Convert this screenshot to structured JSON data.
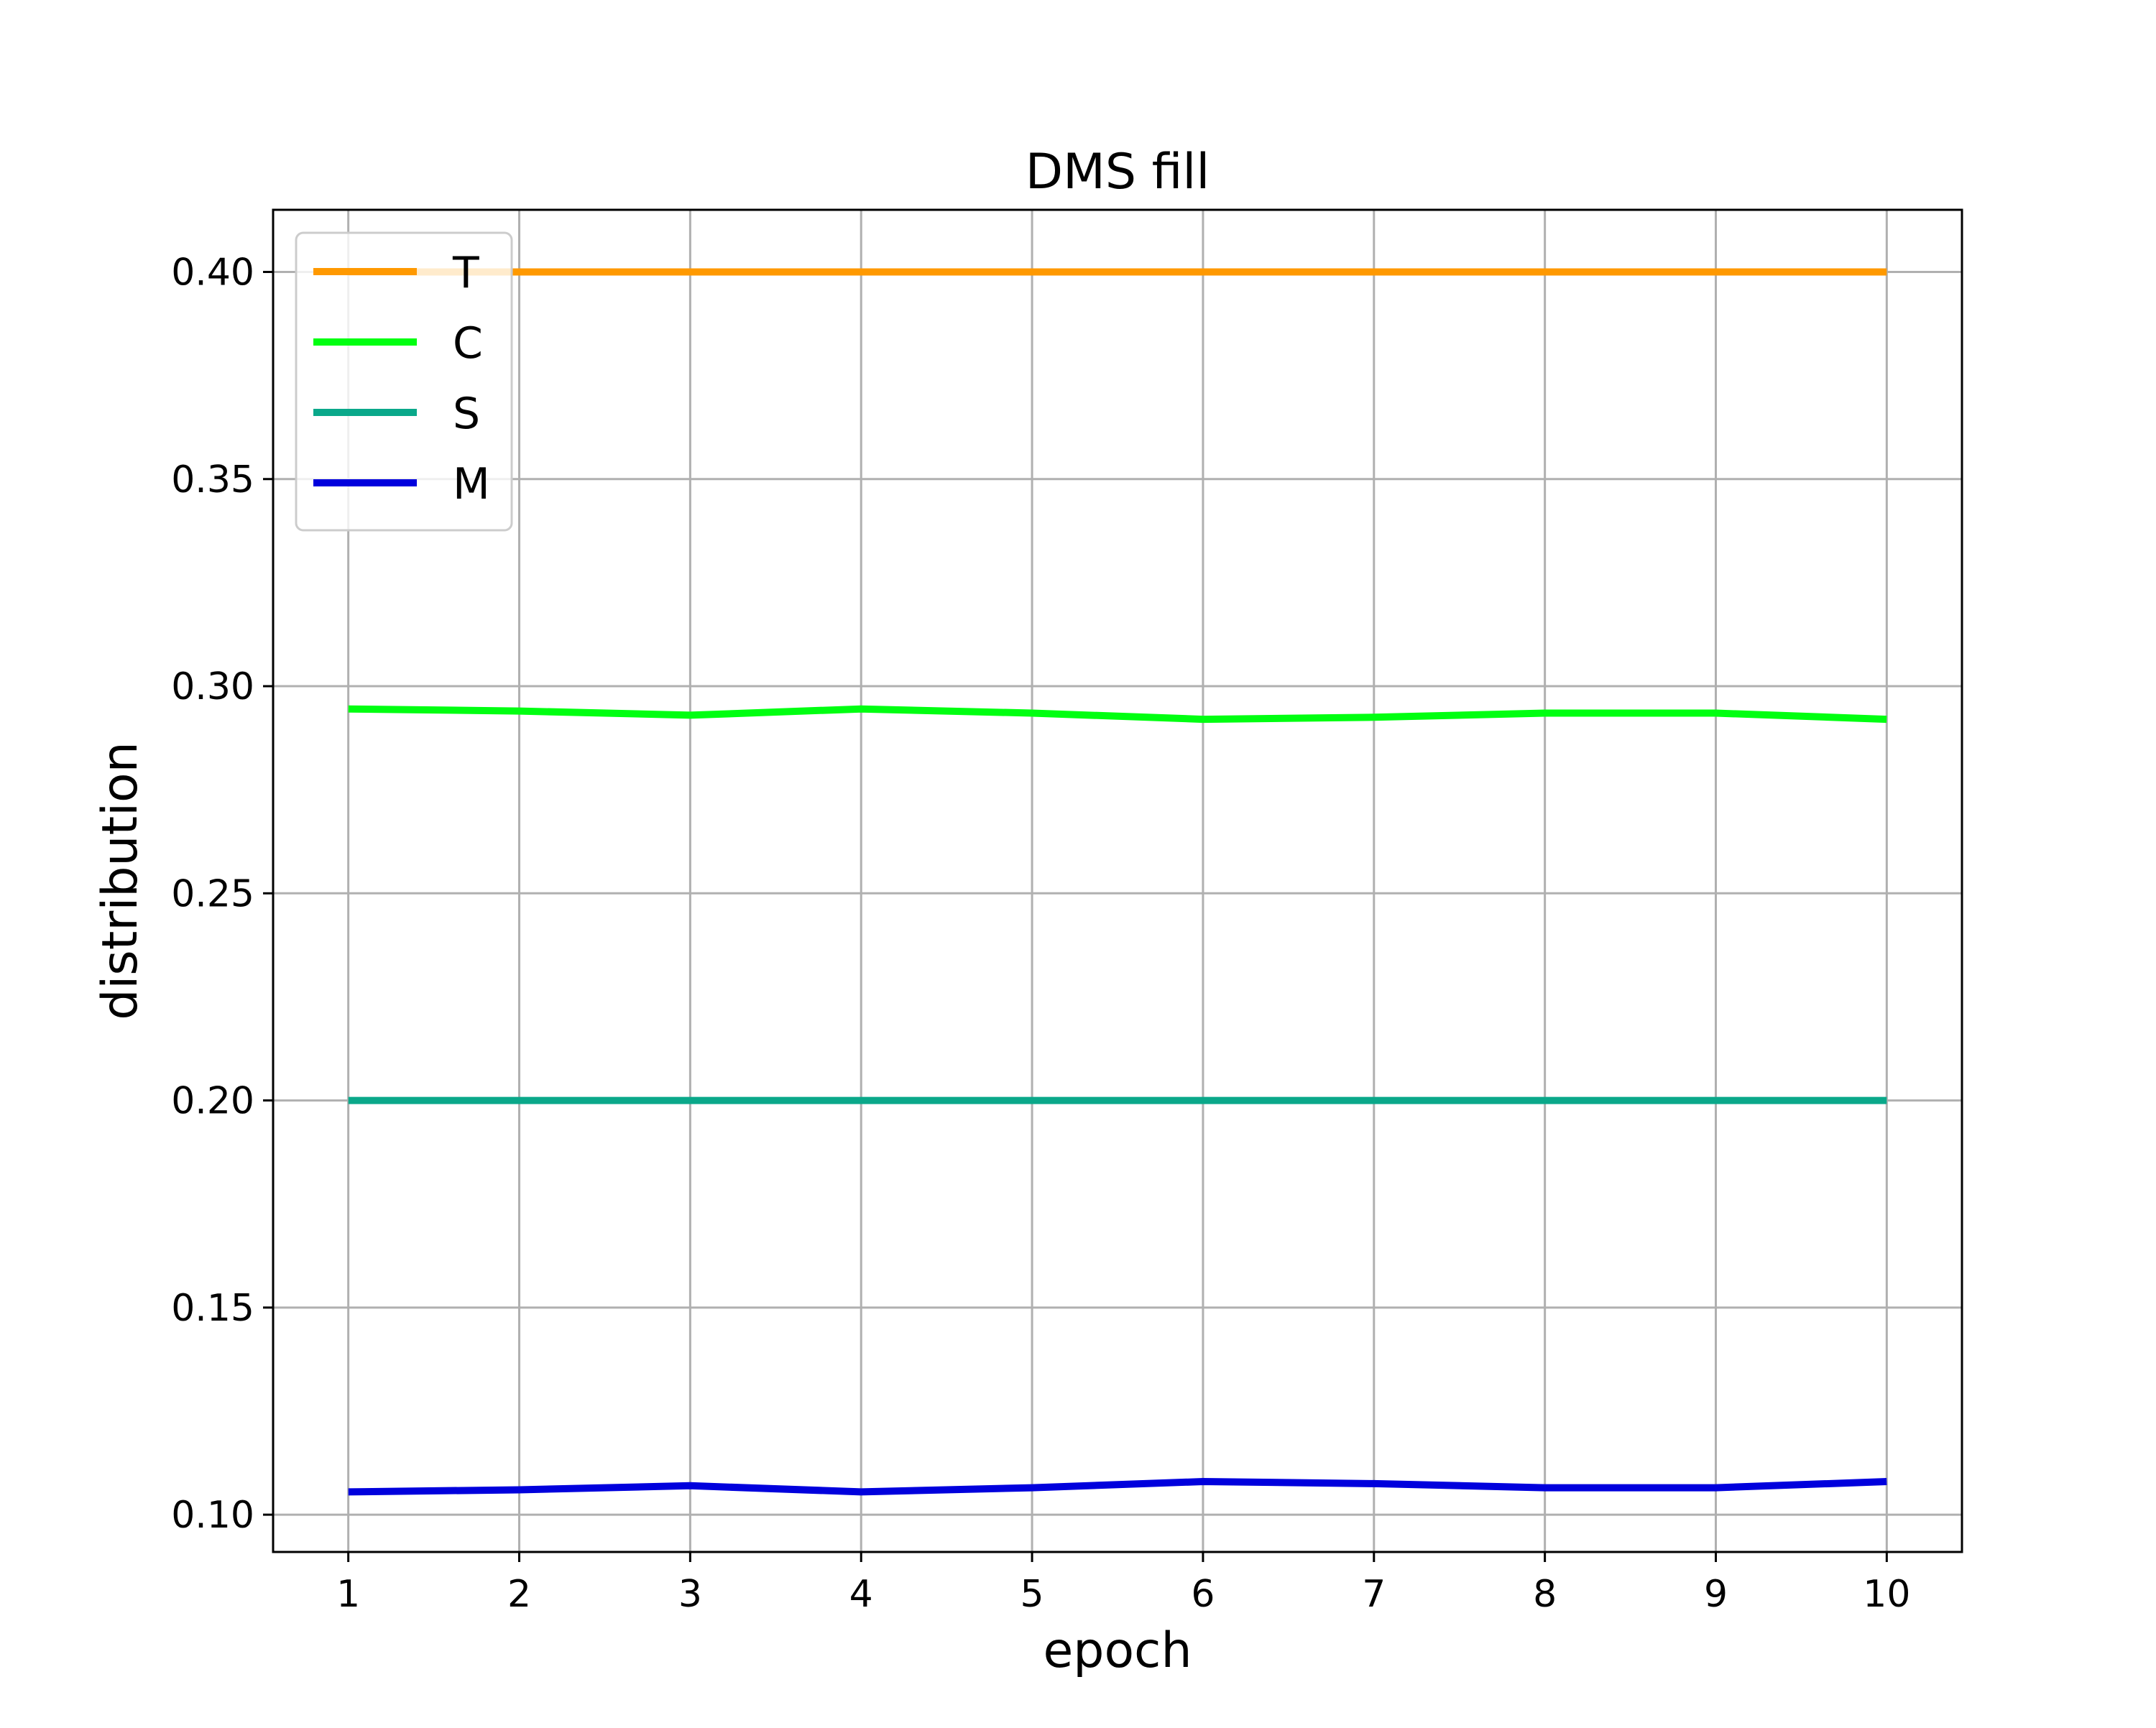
{
  "chart_data": {
    "type": "line",
    "title": "DMS fill",
    "xlabel": "epoch",
    "ylabel": "distribution",
    "x": [
      1,
      2,
      3,
      4,
      5,
      6,
      7,
      8,
      9,
      10
    ],
    "xlim": [
      0.56,
      10.44
    ],
    "ylim": [
      0.091,
      0.415
    ],
    "xticks": [
      "1",
      "2",
      "3",
      "4",
      "5",
      "6",
      "7",
      "8",
      "9",
      "10"
    ],
    "yticks": [
      "0.10",
      "0.15",
      "0.20",
      "0.25",
      "0.30",
      "0.35",
      "0.40"
    ],
    "ytick_values": [
      0.1,
      0.15,
      0.2,
      0.25,
      0.3,
      0.35,
      0.4
    ],
    "grid": true,
    "legend_position": "upper left",
    "series": [
      {
        "name": "T",
        "color": "#ff9900",
        "values": [
          0.4,
          0.4,
          0.4,
          0.4,
          0.4,
          0.4,
          0.4,
          0.4,
          0.4,
          0.4
        ]
      },
      {
        "name": "C",
        "color": "#00ff11",
        "values": [
          0.2945,
          0.294,
          0.293,
          0.2945,
          0.2935,
          0.292,
          0.2925,
          0.2935,
          0.2935,
          0.292
        ]
      },
      {
        "name": "S",
        "color": "#0aa88a",
        "values": [
          0.2,
          0.2,
          0.2,
          0.2,
          0.2,
          0.2,
          0.2,
          0.2,
          0.2,
          0.2
        ]
      },
      {
        "name": "M",
        "color": "#0000dd",
        "values": [
          0.1055,
          0.106,
          0.107,
          0.1055,
          0.1065,
          0.108,
          0.1075,
          0.1065,
          0.1065,
          0.108
        ]
      }
    ]
  }
}
